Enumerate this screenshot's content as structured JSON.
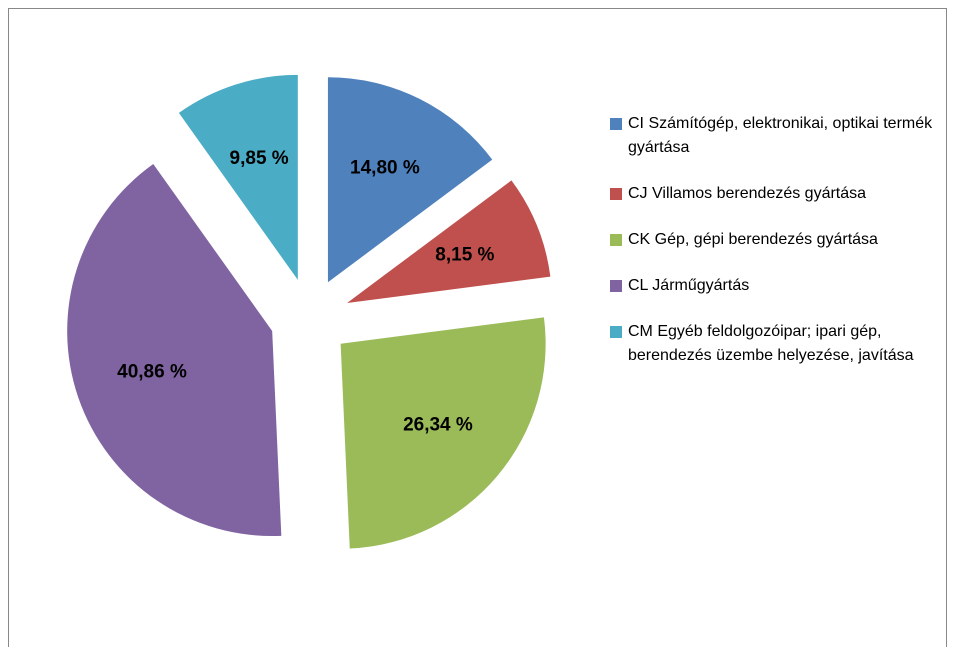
{
  "chart_data": {
    "type": "pie",
    "categories": [
      "CI  Számítógép, elektronikai, optikai termék gyártása",
      "CJ  Villamos berendezés gyártása",
      "CK  Gép, gépi berendezés gyártása",
      "CL  Járműgyártás",
      "CM  Egyéb feldolgozóipar; ipari gép, berendezés üzembe helyezése, javítása"
    ],
    "values": [
      14.8,
      8.15,
      26.34,
      40.86,
      9.85
    ],
    "value_labels": [
      "14,80 %",
      "8,15 %",
      "26,34 %",
      "40,86 %",
      "9,85 %"
    ],
    "colors": [
      "#4f81bd",
      "#c0504d",
      "#9bbb59",
      "#8064a2",
      "#4bacc6"
    ],
    "legend": "right"
  }
}
